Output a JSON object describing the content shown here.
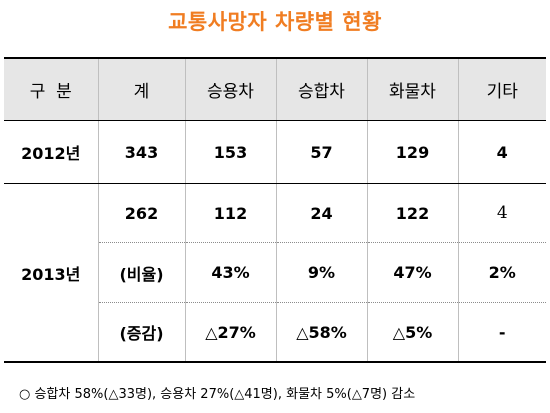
{
  "title": "교통사망자 차량별 현황",
  "table": {
    "headers": [
      "구  분",
      "계",
      "승용차",
      "승합차",
      "화물차",
      "기타"
    ],
    "row_2012": {
      "year": "2012년",
      "cells": [
        "343",
        "153",
        "57",
        "129",
        "4"
      ]
    },
    "year_2013": "2013년",
    "row_2013_count": [
      "262",
      "112",
      "24",
      "122",
      "4"
    ],
    "row_2013_ratio": [
      "(비율)",
      "43%",
      "9%",
      "47%",
      "2%"
    ],
    "row_2013_change": [
      "(증감)",
      "△27%",
      "△58%",
      "△5%",
      "-"
    ]
  },
  "note": "○ 승합차 58%(△33명), 승용차 27%(△41명), 화물차 5%(△7명) 감소"
}
